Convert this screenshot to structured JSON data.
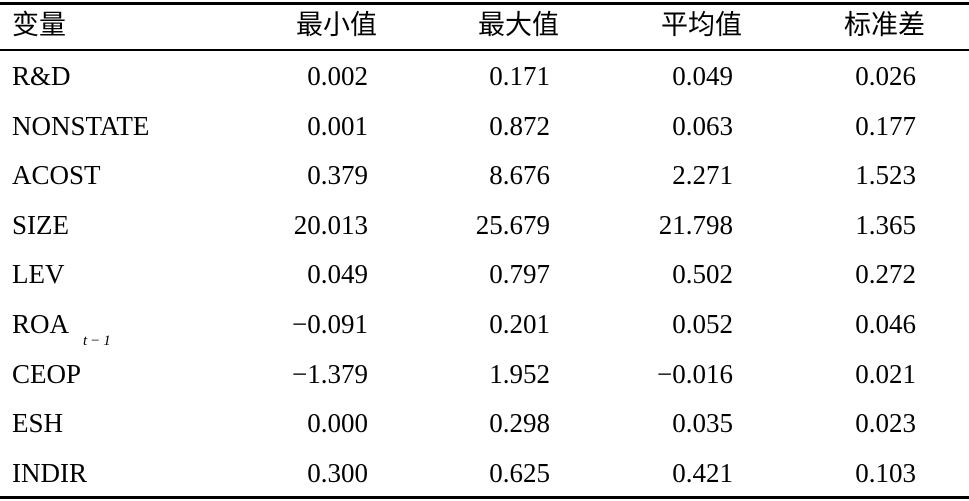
{
  "table": {
    "header": [
      "变量",
      "最小值",
      "最大值",
      "平均值",
      "标准差"
    ],
    "rows": [
      [
        "R&D",
        "0.002",
        "0.171",
        "0.049",
        "0.026"
      ],
      [
        "NONSTATE",
        "0.001",
        "0.872",
        "0.063",
        "0.177"
      ],
      [
        "ACOST",
        "0.379",
        "8.676",
        "2.271",
        "1.523"
      ],
      [
        "SIZE",
        "20.013",
        "25.679",
        "21.798",
        "1.365"
      ],
      [
        "LEV",
        "0.049",
        "0.797",
        "0.502",
        "0.272"
      ],
      [
        {
          "text": "ROA",
          "sub": "t−1"
        },
        "−0.091",
        "0.201",
        "0.052",
        "0.046"
      ],
      [
        "CEOP",
        "−1.379",
        "1.952",
        "−0.016",
        "0.021"
      ],
      [
        "ESH",
        "0.000",
        "0.298",
        "0.035",
        "0.023"
      ],
      [
        "INDIR",
        "0.300",
        "0.625",
        "0.421",
        "0.103"
      ]
    ]
  }
}
